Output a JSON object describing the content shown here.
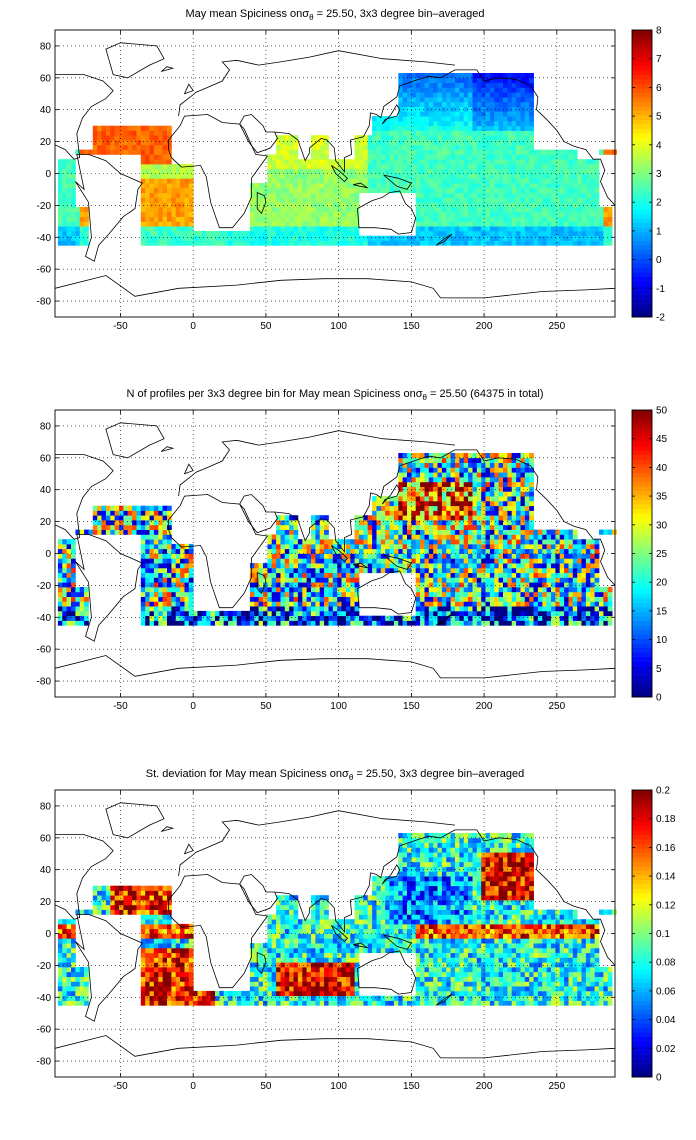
{
  "colors": {
    "land": "#ffffff",
    "coast": "#000000",
    "grid": "#000000"
  },
  "chart_data": [
    {
      "type": "heatmap",
      "title": "May mean Spiciness on σθ = 25.50, 3x3 degree bin–averaged",
      "title_parts": {
        "prefix": "May mean Spiciness on",
        "sigma": "σ",
        "sub": "θ",
        "suffix": " = 25.50, 3x3 degree bin–averaged"
      },
      "xlabel": "",
      "ylabel": "",
      "xlim": [
        -95,
        290
      ],
      "ylim": [
        -90,
        90
      ],
      "xticks": [
        -50,
        0,
        50,
        100,
        150,
        200,
        250
      ],
      "yticks": [
        -80,
        -60,
        -40,
        -20,
        0,
        20,
        40,
        60,
        80
      ],
      "grid": true,
      "colorbar": {
        "min": -2,
        "max": 8,
        "ticks": [
          -2,
          -1,
          0,
          1,
          2,
          3,
          4,
          5,
          6,
          7,
          8
        ]
      },
      "field": "spiciness"
    },
    {
      "type": "heatmap",
      "title": "N of profiles per 3x3 degree bin for May mean Spiciness on σθ = 25.50 (64375 in total)",
      "title_parts": {
        "prefix": "N of profiles per 3x3 degree bin for May mean Spiciness on",
        "sigma": "σ",
        "sub": "θ",
        "suffix": " = 25.50 (64375 in total)"
      },
      "xlabel": "",
      "ylabel": "",
      "xlim": [
        -95,
        290
      ],
      "ylim": [
        -90,
        90
      ],
      "xticks": [
        -50,
        0,
        50,
        100,
        150,
        200,
        250
      ],
      "yticks": [
        -80,
        -60,
        -40,
        -20,
        0,
        20,
        40,
        60,
        80
      ],
      "grid": true,
      "colorbar": {
        "min": 0,
        "max": 50,
        "ticks": [
          0,
          5,
          10,
          15,
          20,
          25,
          30,
          35,
          40,
          45,
          50
        ]
      },
      "field": "count",
      "total_profiles": 64375
    },
    {
      "type": "heatmap",
      "title": "St. deviation for May mean Spiciness on σθ = 25.50, 3x3 degree bin–averaged",
      "title_parts": {
        "prefix": "St. deviation for May mean Spiciness on",
        "sigma": "σ",
        "sub": "θ",
        "suffix": " = 25.50, 3x3 degree bin–averaged"
      },
      "xlabel": "",
      "ylabel": "",
      "xlim": [
        -95,
        290
      ],
      "ylim": [
        -90,
        90
      ],
      "xticks": [
        -50,
        0,
        50,
        100,
        150,
        200,
        250
      ],
      "yticks": [
        -80,
        -60,
        -40,
        -20,
        0,
        20,
        40,
        60,
        80
      ],
      "grid": true,
      "colorbar": {
        "min": 0,
        "max": 0.2,
        "ticks": [
          0,
          0.02,
          0.04,
          0.06,
          0.08,
          0.1,
          0.12,
          0.14,
          0.16,
          0.18,
          0.2
        ]
      },
      "field": "stdev"
    }
  ]
}
